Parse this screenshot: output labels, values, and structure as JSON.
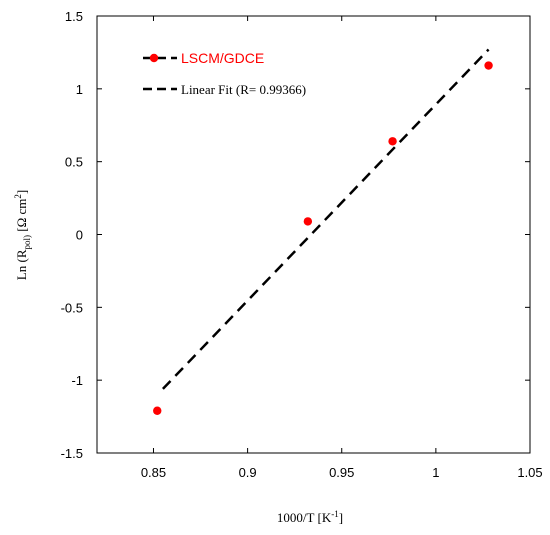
{
  "chart_data": {
    "type": "scatter",
    "xlabel": {
      "base": "1000/T [K",
      "sup": "-1",
      "end": "]"
    },
    "ylabel": {
      "base": "Ln (R",
      "sub": "pol)",
      "mid": " [Ω cm",
      "sup": "2",
      "end": "]"
    },
    "xlim": [
      0.82,
      1.05
    ],
    "ylim": [
      -1.5,
      1.5
    ],
    "x_ticks": [
      0.85,
      0.9,
      0.95,
      1,
      1.05
    ],
    "x_tick_labels": [
      "0.85",
      "0.9",
      "0.95",
      "1",
      "1.05"
    ],
    "y_ticks": [
      -1.5,
      -1,
      -0.5,
      0,
      0.5,
      1,
      1.5
    ],
    "y_tick_labels": [
      "-1.5",
      "-1",
      "-0.5",
      "0",
      "0.5",
      "1",
      "1.5"
    ],
    "grid": false,
    "legend_position": "top-left",
    "series": [
      {
        "name": "LSCM/GDCE",
        "kind": "scatter",
        "color": "#ff0000",
        "x": [
          0.852,
          0.932,
          0.977,
          1.028
        ],
        "y": [
          -1.21,
          0.09,
          0.64,
          1.16
        ]
      },
      {
        "name": "Linear Fit (R= 0.99366)",
        "kind": "line",
        "style": "dashed",
        "color": "#000000",
        "x": [
          0.855,
          1.028
        ],
        "y": [
          -1.06,
          1.27
        ]
      }
    ]
  }
}
